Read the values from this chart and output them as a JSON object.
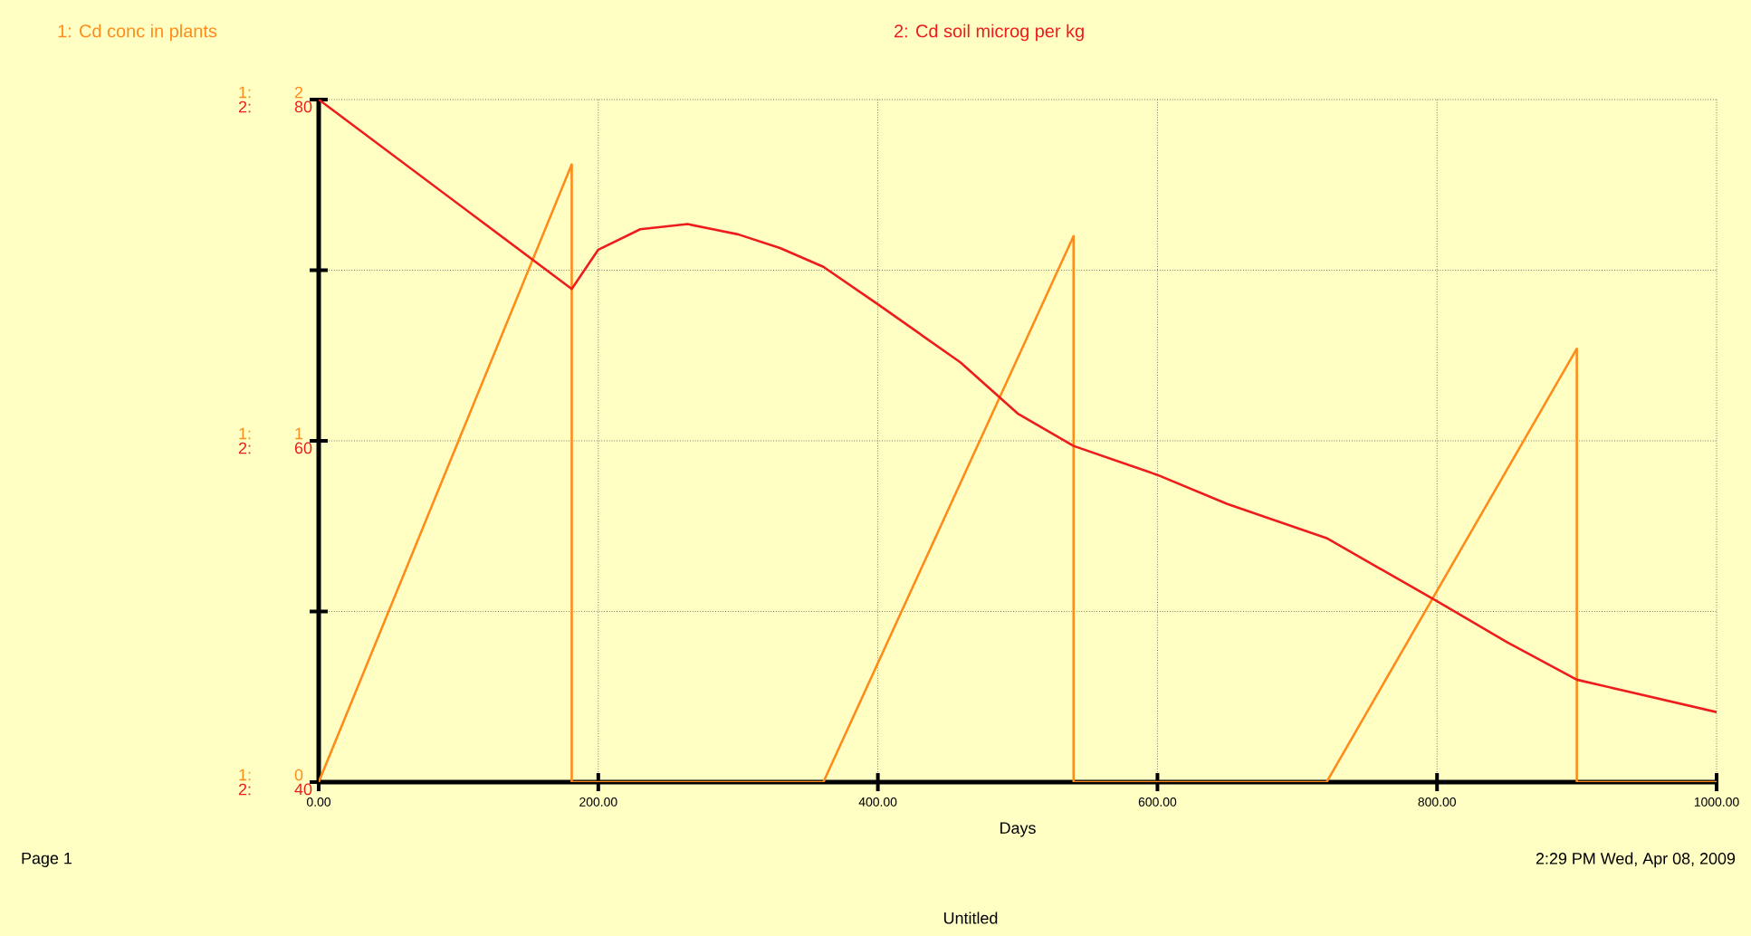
{
  "chart_data": {
    "type": "line",
    "xlabel": "Days",
    "ylabel": "1:",
    "annotations": [
      "Page 1",
      "2:29 PM    Wed, Apr 08, 2009",
      "Untitled",
      "2:"
    ],
    "series": [
      {
        "name": "1: Cd conc in plants",
        "color": "#ff8c1a",
        "axis": "y",
        "x": [
          0,
          181,
          181,
          361,
          540,
          540,
          721,
          900,
          900,
          1000
        ],
        "values": [
          0,
          1.81,
          0,
          0,
          1.6,
          0,
          0,
          1.27,
          0,
          0
        ]
      },
      {
        "name": "2: Cd soil microg per kg",
        "color": "#ee1c1c",
        "axis": "y2",
        "x": [
          0,
          181,
          200,
          230,
          264,
          300,
          330,
          361,
          400,
          459,
          500,
          540,
          600,
          650,
          721,
          800,
          850,
          900,
          1000
        ],
        "values": [
          80,
          68.9,
          71.2,
          72.4,
          72.7,
          72.1,
          71.3,
          70.2,
          68.0,
          64.6,
          61.6,
          59.7,
          58.0,
          56.3,
          54.3,
          50.6,
          48.2,
          46.0,
          44.1
        ]
      }
    ],
    "xlim": [
      0,
      1000
    ],
    "xticks": [
      {
        "value": 0,
        "label": "0.00"
      },
      {
        "value": 200,
        "label": "200.00"
      },
      {
        "value": 400,
        "label": "400.00"
      },
      {
        "value": 600,
        "label": "600.00"
      },
      {
        "value": 800,
        "label": "800.00"
      },
      {
        "value": 1000,
        "label": "1000.00"
      }
    ],
    "ylim": [
      0,
      2
    ],
    "yticks": [
      0,
      {
        "value": 0.5,
        "label": null
      },
      1,
      {
        "value": 1.5,
        "label": null
      },
      2
    ],
    "y2lim": [
      40,
      80
    ],
    "y2ticks": [
      40,
      60,
      80
    ],
    "grid": true,
    "legend": "top",
    "marker": "none",
    "line_style": "solid"
  }
}
